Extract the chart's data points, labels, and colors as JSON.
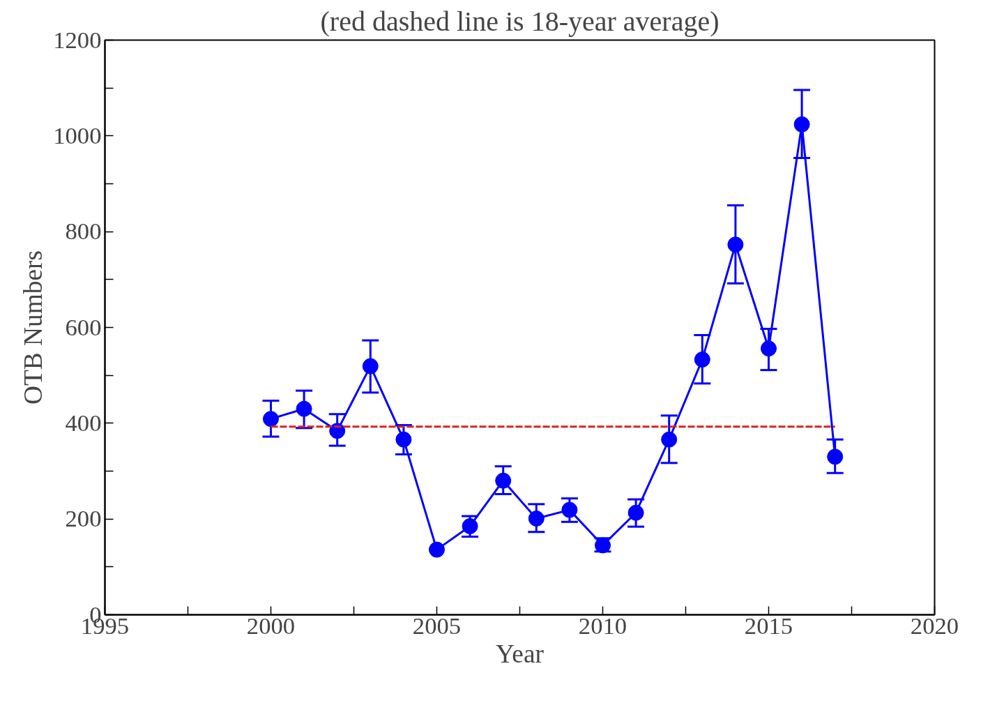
{
  "chart_data": {
    "type": "line",
    "title": "(red dashed line is 18-year average)",
    "xlabel": "Year",
    "ylabel": "OTB Numbers",
    "xlim": [
      1995,
      2020
    ],
    "xticks": [
      1995,
      {
        "value": 1997.5,
        "label": null
      },
      2000,
      {
        "value": 2002.5,
        "label": null
      },
      2005,
      {
        "value": 2007.5,
        "label": null
      },
      2010,
      {
        "value": 2012.5,
        "label": null
      },
      2015,
      {
        "value": 2017.5,
        "label": null
      },
      2020
    ],
    "ylim": [
      0,
      1200
    ],
    "yticks": [
      0,
      {
        "value": 100,
        "label": null
      },
      200,
      {
        "value": 300,
        "label": null
      },
      400,
      {
        "value": 500,
        "label": null
      },
      600,
      {
        "value": 700,
        "label": null
      },
      800,
      {
        "value": 900,
        "label": null
      },
      1000,
      {
        "value": 1100,
        "label": null
      },
      1200
    ],
    "grid": false,
    "series": [
      {
        "marker": "circle",
        "line_style": "solid",
        "color": "#0000ff",
        "x": [
          2000,
          2001,
          2002,
          2003,
          2004,
          2005,
          2006,
          2007,
          2008,
          2009,
          2010,
          2011,
          2012,
          2013,
          2014,
          2015,
          2016,
          2017
        ],
        "values": [
          409,
          430,
          384,
          519,
          366,
          136,
          185,
          280,
          201,
          219,
          145,
          213,
          366,
          533,
          773,
          556,
          1024,
          330
        ],
        "errors": [
          [
            372,
            447
          ],
          [
            390,
            468
          ],
          [
            353,
            419
          ],
          [
            464,
            573
          ],
          [
            335,
            396
          ],
          null,
          [
            163,
            206
          ],
          [
            252,
            310
          ],
          [
            173,
            231
          ],
          [
            194,
            243
          ],
          [
            132,
            160
          ],
          [
            184,
            241
          ],
          [
            317,
            416
          ],
          [
            483,
            584
          ],
          [
            692,
            855
          ],
          [
            511,
            597
          ],
          [
            954,
            1096
          ],
          [
            296,
            366
          ]
        ]
      },
      {
        "marker": "none",
        "line_style": "dashed",
        "color": "#dd2222",
        "x": [
          2000,
          2017
        ],
        "values": [
          393,
          393
        ]
      }
    ]
  }
}
